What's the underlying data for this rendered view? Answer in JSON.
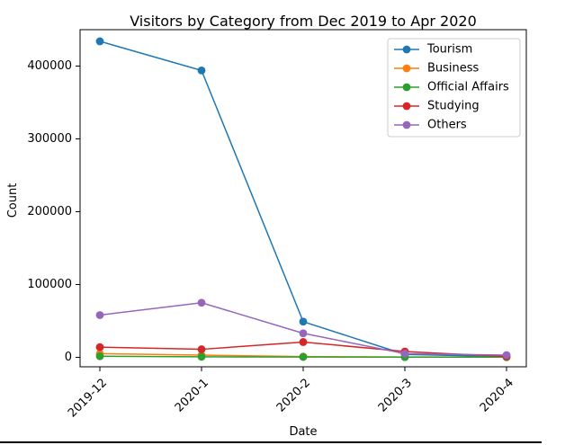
{
  "chart_data": {
    "type": "line",
    "title": "Visitors by Category from Dec 2019 to Apr 2020",
    "xlabel": "Date",
    "ylabel": "Count",
    "categories": [
      "2019-12",
      "2020-1",
      "2020-2",
      "2020-3",
      "2020-4"
    ],
    "ylim": [
      -13000,
      450000
    ],
    "yticks": [
      0,
      100000,
      200000,
      300000,
      400000
    ],
    "grid": false,
    "legend_position": "top-right",
    "series": [
      {
        "name": "Tourism",
        "color": "#1f77b4",
        "values": [
          434000,
          394000,
          49000,
          4000,
          1000
        ]
      },
      {
        "name": "Business",
        "color": "#ff7f0e",
        "values": [
          5000,
          3000,
          1000,
          500,
          300
        ]
      },
      {
        "name": "Official Affairs",
        "color": "#2ca02c",
        "values": [
          1500,
          700,
          500,
          300,
          200
        ]
      },
      {
        "name": "Studying",
        "color": "#d62728",
        "values": [
          14000,
          11000,
          21000,
          8000,
          1000
        ]
      },
      {
        "name": "Others",
        "color": "#9467bd",
        "values": [
          58000,
          75000,
          33000,
          5000,
          3000
        ]
      }
    ]
  }
}
